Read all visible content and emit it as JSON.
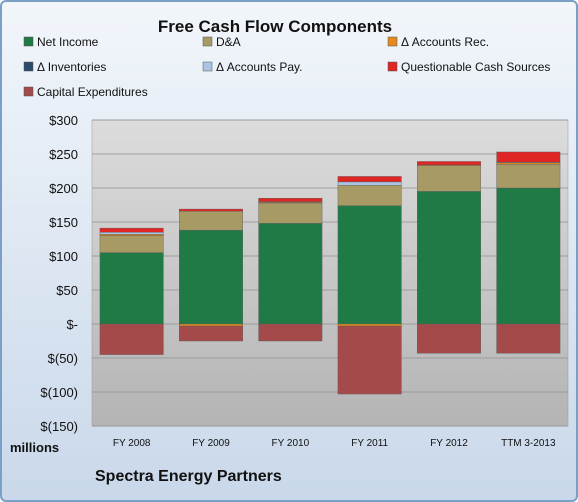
{
  "chart_data": {
    "type": "bar",
    "stacked": true,
    "title": "Free Cash Flow Components",
    "units_label": "millions",
    "company": "Spectra Energy Partners",
    "categories": [
      "FY 2008",
      "FY 2009",
      "FY 2010",
      "FY 2011",
      "FY 2012",
      "TTM 3-2013"
    ],
    "ylim": [
      -150,
      300
    ],
    "yticks": [
      -150,
      -100,
      -50,
      0,
      50,
      100,
      150,
      200,
      250,
      300
    ],
    "ytick_labels": [
      "$(150)",
      "$(100)",
      "$(50)",
      "$-",
      "$50",
      "$100",
      "$150",
      "$200",
      "$250",
      "$300"
    ],
    "grid": true,
    "legend_position": "top",
    "series": [
      {
        "name": "Net Income",
        "color": "#1f7a45",
        "values": [
          105,
          138,
          148,
          174,
          195,
          200
        ]
      },
      {
        "name": "D&A",
        "color": "#a89a64",
        "values": [
          25,
          28,
          30,
          30,
          38,
          35
        ]
      },
      {
        "name": "Δ Accounts Rec.",
        "color": "#e68a1e",
        "values": [
          2,
          -3,
          1,
          -3,
          1,
          2
        ]
      },
      {
        "name": "Δ Inventories",
        "color": "#2a4a6b",
        "values": [
          0,
          0,
          0,
          0,
          0,
          0
        ]
      },
      {
        "name": "Δ Accounts Pay.",
        "color": "#a9c4e3",
        "values": [
          3,
          0,
          1,
          5,
          0,
          1
        ]
      },
      {
        "name": "Questionable Cash Sources",
        "color": "#e02525",
        "values": [
          6,
          3,
          5,
          8,
          5,
          15
        ]
      },
      {
        "name": "Capital Expenditures",
        "color": "#a44a4a",
        "values": [
          -45,
          -22,
          -25,
          -100,
          -43,
          -43
        ]
      }
    ]
  }
}
